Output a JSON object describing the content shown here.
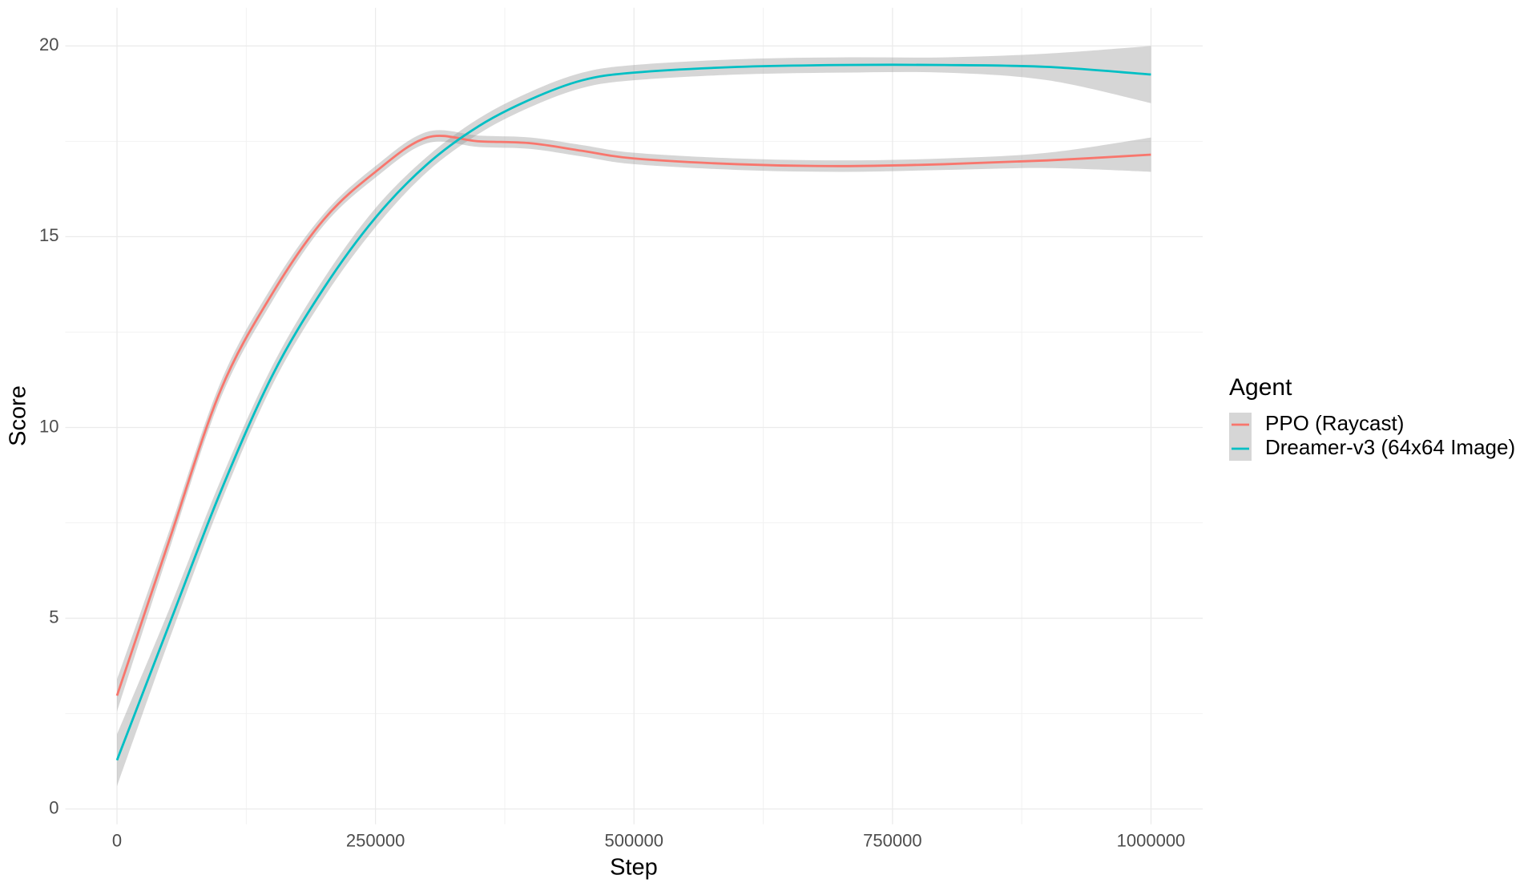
{
  "chart_data": {
    "type": "line",
    "x_label": "Step",
    "y_label": "Score",
    "legend_title": "Agent",
    "legend_position": "right",
    "grid": true,
    "x": [
      0,
      50000,
      100000,
      150000,
      200000,
      250000,
      300000,
      350000,
      400000,
      450000,
      500000,
      600000,
      700000,
      800000,
      900000,
      1000000
    ],
    "series": [
      {
        "name": "PPO (Raycast)",
        "color": "#F8766D",
        "values": [
          2.97,
          7.0,
          10.96,
          13.5,
          15.45,
          16.7,
          17.6,
          17.5,
          17.45,
          17.25,
          17.05,
          16.9,
          16.85,
          16.9,
          17.0,
          17.15
        ],
        "lower": [
          2.55,
          6.75,
          10.75,
          13.3,
          15.3,
          16.55,
          17.45,
          17.35,
          17.3,
          17.1,
          16.9,
          16.75,
          16.7,
          16.75,
          16.8,
          16.7
        ],
        "upper": [
          3.4,
          7.25,
          11.17,
          13.7,
          15.6,
          16.85,
          17.75,
          17.65,
          17.6,
          17.4,
          17.2,
          17.05,
          17.0,
          17.05,
          17.2,
          17.6
        ]
      },
      {
        "name": "Dreamer-v3 (64x64 Image)",
        "color": "#00BFC4",
        "values": [
          1.28,
          4.8,
          8.3,
          11.35,
          13.65,
          15.5,
          16.9,
          17.9,
          18.6,
          19.1,
          19.3,
          19.45,
          19.5,
          19.5,
          19.45,
          19.25
        ],
        "lower": [
          0.6,
          4.4,
          8.0,
          11.1,
          13.4,
          15.25,
          16.7,
          17.7,
          18.4,
          18.9,
          19.1,
          19.25,
          19.3,
          19.3,
          19.1,
          18.5
        ],
        "upper": [
          1.96,
          5.2,
          8.6,
          11.6,
          13.9,
          15.75,
          17.1,
          18.1,
          18.8,
          19.3,
          19.5,
          19.65,
          19.7,
          19.7,
          19.8,
          20.0
        ]
      }
    ],
    "band_color": "#999999",
    "xlim": [
      -50000,
      1050000
    ],
    "ylim": [
      -0.4,
      21
    ],
    "xticks": [
      0,
      250000,
      500000,
      750000,
      1000000
    ],
    "yticks": [
      0,
      5,
      10,
      15,
      20
    ],
    "xminor": [
      125000,
      375000,
      625000,
      875000
    ],
    "yminor": [
      2.5,
      7.5,
      12.5,
      17.5
    ]
  }
}
